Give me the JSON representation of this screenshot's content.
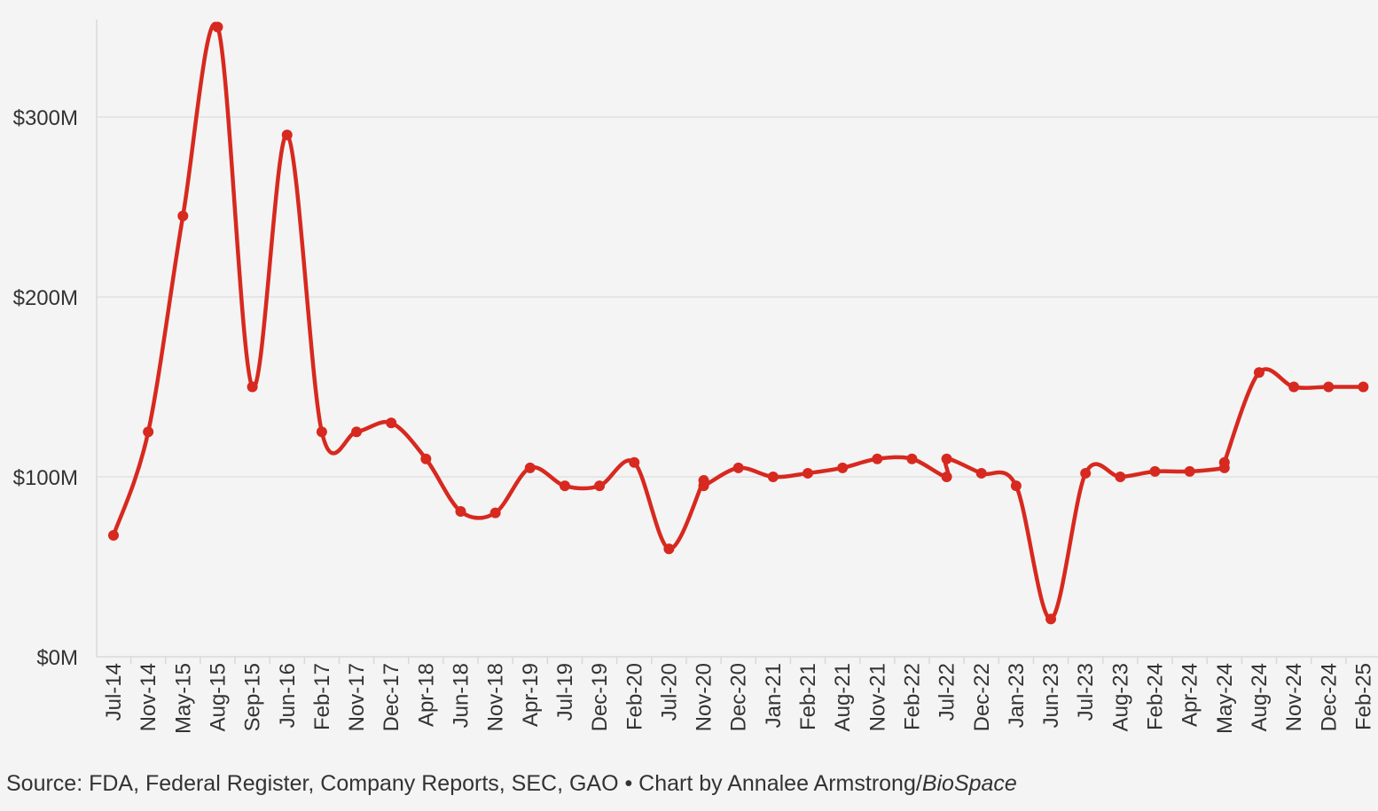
{
  "colors": {
    "background": "#f4f4f4",
    "line": "#d7291f",
    "grid": "#e6e6e6",
    "axis": "#d9d9d9",
    "text": "#333333"
  },
  "footer": {
    "source_text": "Source: FDA, Federal Register, Company Reports, SEC, GAO • Chart by Annalee Armstrong/",
    "brand": "BioSpace"
  },
  "chart_data": {
    "type": "line",
    "title": "",
    "xlabel": "",
    "ylabel": "",
    "ylim": [
      0,
      350
    ],
    "yticks": [
      {
        "value": 0,
        "label": "$0M"
      },
      {
        "value": 100,
        "label": "$100M"
      },
      {
        "value": 200,
        "label": "$200M"
      },
      {
        "value": 300,
        "label": "$300M"
      }
    ],
    "categories": [
      "Jul-14",
      "Nov-14",
      "May-15",
      "Aug-15",
      "Sep-15",
      "Jun-16",
      "Feb-17",
      "Nov-17",
      "Dec-17",
      "Apr-18",
      "Jun-18",
      "Nov-18",
      "Apr-19",
      "Jul-19",
      "Dec-19",
      "Feb-20",
      "Jul-20",
      "Nov-20",
      "Dec-20",
      "Jan-21",
      "Feb-21",
      "Aug-21",
      "Nov-21",
      "Feb-22",
      "Jul-22",
      "Dec-22",
      "Jan-23",
      "Jun-23",
      "Jul-23",
      "Aug-23",
      "Feb-24",
      "Apr-24",
      "May-24",
      "Aug-24",
      "Nov-24",
      "Dec-24",
      "Feb-25"
    ],
    "points": [
      {
        "i": 0,
        "value": 67.5
      },
      {
        "i": 1,
        "value": 125
      },
      {
        "i": 2,
        "value": 245
      },
      {
        "i": 3,
        "value": 350
      },
      {
        "i": 4,
        "value": 150
      },
      {
        "i": 5,
        "value": 290
      },
      {
        "i": 6,
        "value": 125
      },
      {
        "i": 7,
        "value": 125
      },
      {
        "i": 8,
        "value": 130
      },
      {
        "i": 9,
        "value": 110
      },
      {
        "i": 10,
        "value": 80.8
      },
      {
        "i": 11,
        "value": 80
      },
      {
        "i": 12,
        "value": 105
      },
      {
        "i": 13,
        "value": 95
      },
      {
        "i": 14,
        "value": 95
      },
      {
        "i": 15,
        "value": 108
      },
      {
        "i": 16,
        "value": 60
      },
      {
        "i": 17,
        "value": 98
      },
      {
        "i": 17,
        "value": 95
      },
      {
        "i": 18,
        "value": 105
      },
      {
        "i": 19,
        "value": 100
      },
      {
        "i": 20,
        "value": 102
      },
      {
        "i": 21,
        "value": 105
      },
      {
        "i": 22,
        "value": 110
      },
      {
        "i": 23,
        "value": 110
      },
      {
        "i": 24,
        "value": 100
      },
      {
        "i": 24,
        "value": 110
      },
      {
        "i": 25,
        "value": 102
      },
      {
        "i": 26,
        "value": 95
      },
      {
        "i": 27,
        "value": 21
      },
      {
        "i": 28,
        "value": 102
      },
      {
        "i": 29,
        "value": 100
      },
      {
        "i": 30,
        "value": 103
      },
      {
        "i": 31,
        "value": 103
      },
      {
        "i": 32,
        "value": 105
      },
      {
        "i": 32,
        "value": 108
      },
      {
        "i": 33,
        "value": 158
      },
      {
        "i": 34,
        "value": 150
      },
      {
        "i": 35,
        "value": 150
      },
      {
        "i": 36,
        "value": 150
      }
    ],
    "legend": "none",
    "grid": true
  }
}
